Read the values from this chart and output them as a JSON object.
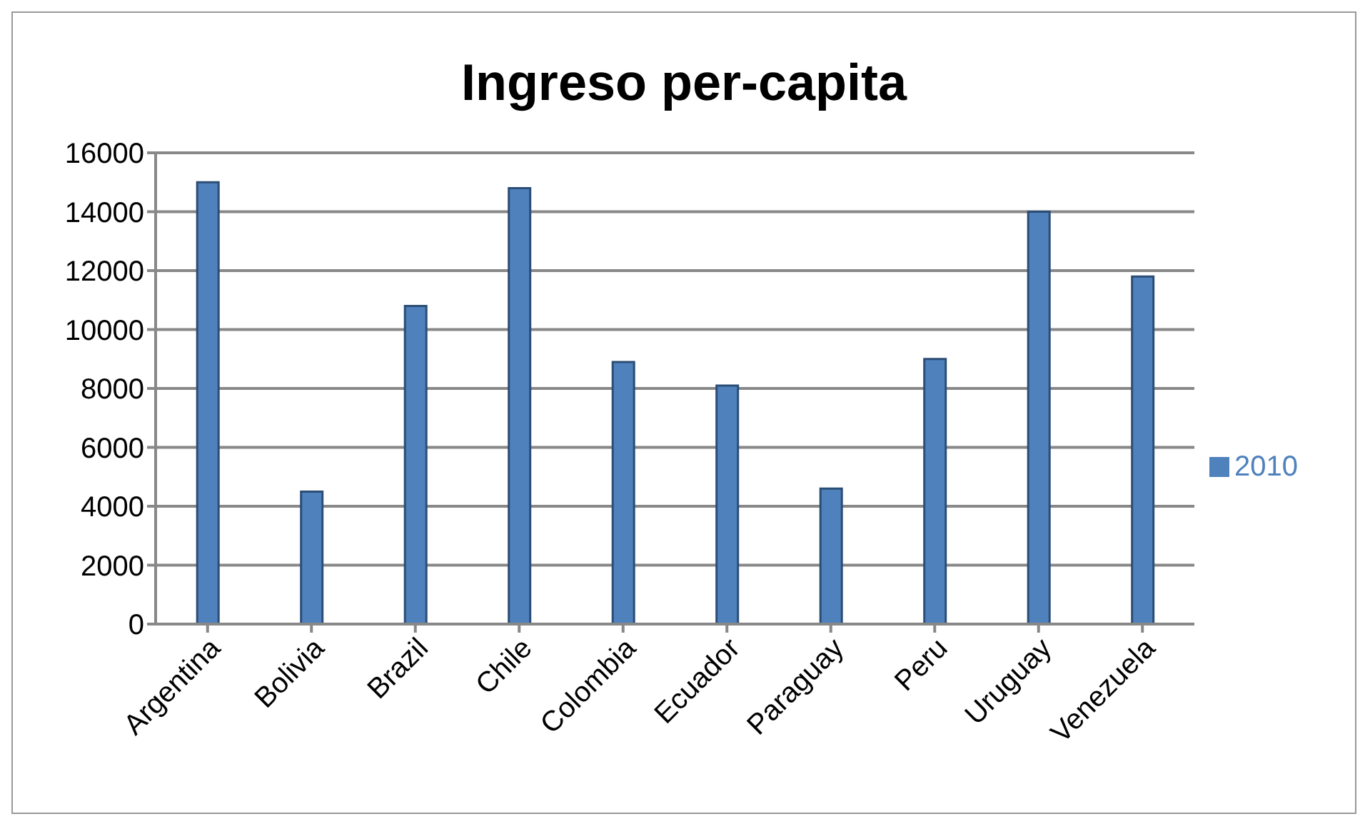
{
  "chart_data": {
    "type": "bar",
    "title": "Ingreso per-capita",
    "categories": [
      "Argentina",
      "Bolivia",
      "Brazil",
      "Chile",
      "Colombia",
      "Ecuador",
      "Paraguay",
      "Peru",
      "Uruguay",
      "Venezuela"
    ],
    "series": [
      {
        "name": "2010",
        "color": "#4f81bd",
        "values": [
          15000,
          4500,
          10800,
          14800,
          8900,
          8100,
          4600,
          9000,
          14000,
          11800
        ]
      }
    ],
    "ylim": [
      0,
      16000
    ],
    "yticks": [
      0,
      2000,
      4000,
      6000,
      8000,
      10000,
      12000,
      14000,
      16000
    ],
    "grid": "y",
    "legend": "right"
  }
}
